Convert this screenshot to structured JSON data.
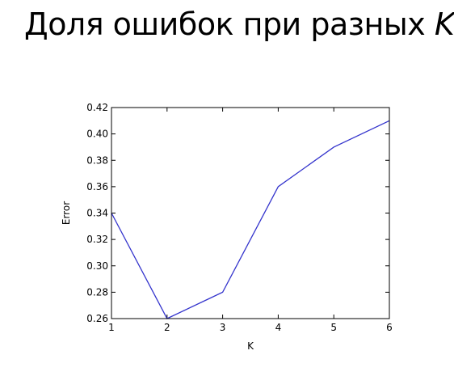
{
  "title": {
    "text": "Доля ошибок при разных",
    "emph": "K"
  },
  "chart_data": {
    "type": "line",
    "xlabel": "K",
    "ylabel": "Error",
    "xlim": [
      1,
      6
    ],
    "ylim": [
      0.26,
      0.42
    ],
    "x_ticks": [
      1,
      2,
      3,
      4,
      5,
      6
    ],
    "y_ticks": [
      0.26,
      0.28,
      0.3,
      0.32,
      0.34,
      0.36,
      0.38,
      0.4,
      0.42
    ],
    "y_tick_labels": [
      "0.26",
      "0.28",
      "0.30",
      "0.32",
      "0.34",
      "0.36",
      "0.38",
      "0.40",
      "0.42"
    ],
    "series": [
      {
        "x": [
          1,
          2,
          3,
          4,
          5,
          6
        ],
        "values": [
          0.34,
          0.26,
          0.28,
          0.36,
          0.39,
          0.41
        ],
        "color": "#3333cc"
      }
    ],
    "grid": false,
    "legend": false
  }
}
